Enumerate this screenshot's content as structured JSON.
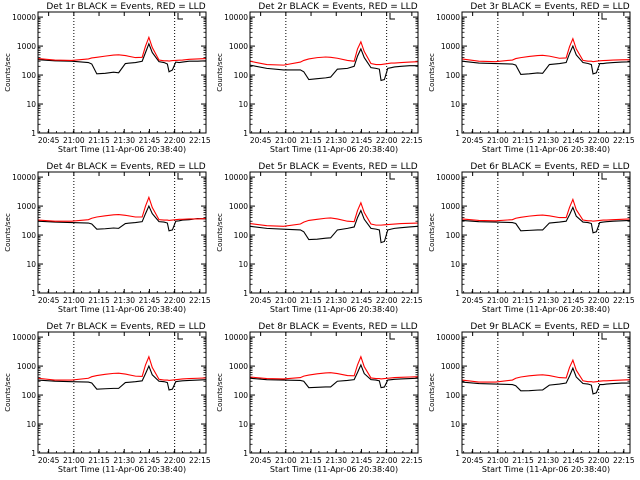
{
  "figure": {
    "xlabel": "Start Time (11-Apr-06 20:38:40)",
    "ylabel": "Counts/sec",
    "x_ticks": [
      "20:45",
      "21:00",
      "21:15",
      "21:30",
      "21:45",
      "22:00",
      "22:15"
    ],
    "y_ticks": [
      "1",
      "10",
      "100",
      "1000",
      "10000"
    ]
  },
  "colors": {
    "events": "#000000",
    "lld": "#ff0000",
    "axes": "#000000",
    "background": "#ffffff"
  },
  "chart_data": [
    {
      "type": "line",
      "title": "Det 1r BLACK = Events, RED = LLD",
      "x_unit": "minutes after 20:38:40",
      "xlim": [
        0,
        100
      ],
      "ylim": [
        1,
        15000
      ],
      "y_scale": "log",
      "dotted_vlines": [
        "21:00",
        "22:00"
      ],
      "x": [
        0,
        10,
        20,
        30,
        32,
        35,
        40,
        45,
        48,
        52,
        58,
        62,
        64,
        66,
        68,
        72,
        75,
        77,
        78,
        80,
        82,
        84,
        86,
        90,
        95,
        100
      ],
      "series": [
        {
          "name": "Events",
          "values": [
            340,
            310,
            300,
            270,
            240,
            110,
            115,
            125,
            120,
            250,
            270,
            300,
            600,
            1200,
            600,
            290,
            270,
            240,
            130,
            150,
            280,
            270,
            280,
            300,
            300,
            310
          ]
        },
        {
          "name": "LLD",
          "values": [
            370,
            330,
            320,
            360,
            390,
            410,
            450,
            490,
            500,
            470,
            400,
            410,
            1000,
            2000,
            900,
            330,
            310,
            310,
            305,
            315,
            320,
            325,
            330,
            350,
            360,
            370
          ]
        }
      ]
    },
    {
      "type": "line",
      "title": "Det 2r BLACK = Events, RED = LLD",
      "x_unit": "minutes after 20:38:40",
      "xlim": [
        0,
        100
      ],
      "ylim": [
        1,
        15000
      ],
      "y_scale": "log",
      "dotted_vlines": [
        "21:00",
        "22:00"
      ],
      "x": [
        0,
        10,
        20,
        30,
        32,
        35,
        40,
        45,
        48,
        52,
        58,
        62,
        64,
        66,
        68,
        72,
        75,
        77,
        78,
        80,
        82,
        84,
        86,
        90,
        95,
        100
      ],
      "series": [
        {
          "name": "Events",
          "values": [
            220,
            170,
            150,
            150,
            130,
            70,
            75,
            80,
            85,
            160,
            170,
            200,
            450,
            800,
            400,
            180,
            170,
            160,
            65,
            70,
            170,
            180,
            190,
            200,
            210,
            210
          ]
        },
        {
          "name": "LLD",
          "values": [
            300,
            230,
            220,
            280,
            320,
            360,
            400,
            420,
            410,
            380,
            320,
            300,
            800,
            1400,
            650,
            250,
            230,
            230,
            230,
            240,
            250,
            260,
            260,
            270,
            280,
            290
          ]
        }
      ]
    },
    {
      "type": "line",
      "title": "Det 3r BLACK = Events, RED = LLD",
      "x_unit": "minutes after 20:38:40",
      "xlim": [
        0,
        100
      ],
      "ylim": [
        1,
        15000
      ],
      "y_scale": "log",
      "dotted_vlines": [
        "21:00",
        "22:00"
      ],
      "x": [
        0,
        10,
        20,
        30,
        32,
        35,
        40,
        45,
        48,
        52,
        58,
        62,
        64,
        66,
        68,
        72,
        75,
        77,
        78,
        80,
        82,
        84,
        86,
        90,
        95,
        100
      ],
      "series": [
        {
          "name": "Events",
          "values": [
            300,
            260,
            250,
            240,
            220,
            105,
            110,
            118,
            115,
            230,
            250,
            270,
            550,
            1000,
            500,
            270,
            250,
            230,
            110,
            120,
            250,
            250,
            260,
            270,
            280,
            285
          ]
        },
        {
          "name": "LLD",
          "values": [
            360,
            300,
            290,
            330,
            370,
            400,
            440,
            470,
            480,
            450,
            380,
            390,
            950,
            1800,
            800,
            320,
            300,
            300,
            290,
            300,
            310,
            315,
            320,
            330,
            335,
            340
          ]
        }
      ]
    },
    {
      "type": "line",
      "title": "Det 4r BLACK = Events, RED = LLD",
      "x_unit": "minutes after 20:38:40",
      "xlim": [
        0,
        100
      ],
      "ylim": [
        1,
        15000
      ],
      "y_scale": "log",
      "dotted_vlines": [
        "21:00",
        "22:00"
      ],
      "x": [
        0,
        10,
        20,
        30,
        32,
        35,
        40,
        45,
        48,
        52,
        58,
        62,
        64,
        66,
        68,
        72,
        75,
        77,
        78,
        80,
        82,
        84,
        86,
        90,
        95,
        100
      ],
      "series": [
        {
          "name": "Events",
          "values": [
            300,
            280,
            270,
            260,
            240,
            160,
            165,
            175,
            170,
            250,
            270,
            290,
            550,
            1000,
            550,
            290,
            280,
            260,
            140,
            150,
            300,
            310,
            330,
            340,
            370,
            360
          ]
        },
        {
          "name": "LLD",
          "values": [
            330,
            300,
            300,
            340,
            380,
            420,
            460,
            500,
            510,
            480,
            420,
            420,
            1000,
            2000,
            900,
            340,
            330,
            330,
            320,
            330,
            340,
            350,
            350,
            360,
            360,
            370
          ]
        }
      ]
    },
    {
      "type": "line",
      "title": "Det 5r BLACK = Events, RED = LLD",
      "x_unit": "minutes after 20:38:40",
      "xlim": [
        0,
        100
      ],
      "ylim": [
        1,
        15000
      ],
      "y_scale": "log",
      "dotted_vlines": [
        "21:00",
        "22:00"
      ],
      "x": [
        0,
        10,
        20,
        30,
        32,
        35,
        40,
        45,
        48,
        52,
        58,
        62,
        64,
        66,
        68,
        72,
        75,
        77,
        78,
        80,
        82,
        84,
        86,
        90,
        95,
        100
      ],
      "series": [
        {
          "name": "Events",
          "values": [
            200,
            170,
            160,
            150,
            130,
            70,
            72,
            78,
            80,
            150,
            170,
            190,
            400,
            700,
            350,
            170,
            160,
            150,
            55,
            60,
            150,
            160,
            170,
            180,
            190,
            200
          ]
        },
        {
          "name": "LLD",
          "values": [
            250,
            210,
            200,
            240,
            280,
            320,
            350,
            380,
            390,
            360,
            300,
            290,
            700,
            1300,
            600,
            240,
            220,
            220,
            220,
            225,
            230,
            235,
            240,
            250,
            255,
            260
          ]
        }
      ]
    },
    {
      "type": "line",
      "title": "Det 6r BLACK = Events, RED = LLD",
      "x_unit": "minutes after 20:38:40",
      "xlim": [
        0,
        100
      ],
      "ylim": [
        1,
        15000
      ],
      "y_scale": "log",
      "dotted_vlines": [
        "21:00",
        "22:00"
      ],
      "x": [
        0,
        10,
        20,
        30,
        32,
        35,
        40,
        45,
        48,
        52,
        58,
        62,
        64,
        66,
        68,
        72,
        75,
        77,
        78,
        80,
        82,
        84,
        86,
        90,
        95,
        100
      ],
      "series": [
        {
          "name": "Events",
          "values": [
            320,
            290,
            280,
            270,
            250,
            140,
            145,
            150,
            150,
            260,
            280,
            300,
            500,
            900,
            450,
            280,
            270,
            250,
            120,
            130,
            270,
            280,
            290,
            300,
            310,
            320
          ]
        },
        {
          "name": "LLD",
          "values": [
            360,
            320,
            310,
            340,
            380,
            410,
            450,
            480,
            490,
            460,
            400,
            400,
            900,
            1700,
            750,
            330,
            310,
            310,
            300,
            310,
            320,
            330,
            330,
            340,
            350,
            360
          ]
        }
      ]
    },
    {
      "type": "line",
      "title": "Det 7r BLACK = Events, RED = LLD",
      "x_unit": "minutes after 20:38:40",
      "xlim": [
        0,
        100
      ],
      "ylim": [
        1,
        15000
      ],
      "y_scale": "log",
      "dotted_vlines": [
        "21:00",
        "22:00"
      ],
      "x": [
        0,
        10,
        20,
        30,
        32,
        35,
        40,
        45,
        48,
        52,
        58,
        62,
        64,
        66,
        68,
        72,
        75,
        77,
        78,
        80,
        82,
        84,
        86,
        90,
        95,
        100
      ],
      "series": [
        {
          "name": "Events",
          "values": [
            330,
            300,
            290,
            280,
            260,
            160,
            165,
            170,
            170,
            270,
            290,
            310,
            550,
            1000,
            500,
            300,
            290,
            270,
            150,
            160,
            290,
            300,
            310,
            320,
            330,
            340
          ]
        },
        {
          "name": "LLD",
          "values": [
            380,
            330,
            330,
            380,
            430,
            470,
            520,
            560,
            570,
            530,
            450,
            440,
            1100,
            2100,
            900,
            350,
            330,
            330,
            320,
            330,
            340,
            350,
            360,
            370,
            380,
            390
          ]
        }
      ]
    },
    {
      "type": "line",
      "title": "Det 8r BLACK = Events, RED = LLD",
      "x_unit": "minutes after 20:38:40",
      "xlim": [
        0,
        100
      ],
      "ylim": [
        1,
        15000
      ],
      "y_scale": "log",
      "dotted_vlines": [
        "21:00",
        "22:00"
      ],
      "x": [
        0,
        10,
        20,
        30,
        32,
        35,
        40,
        45,
        48,
        52,
        58,
        62,
        64,
        66,
        68,
        72,
        75,
        77,
        78,
        80,
        82,
        84,
        86,
        90,
        95,
        100
      ],
      "series": [
        {
          "name": "Events",
          "values": [
            380,
            340,
            330,
            320,
            300,
            180,
            185,
            190,
            190,
            300,
            320,
            340,
            600,
            1100,
            550,
            340,
            330,
            310,
            180,
            190,
            330,
            340,
            350,
            360,
            370,
            380
          ]
        },
        {
          "name": "LLD",
          "values": [
            420,
            370,
            360,
            400,
            450,
            490,
            540,
            580,
            590,
            550,
            470,
            460,
            1100,
            2100,
            950,
            390,
            370,
            370,
            360,
            370,
            380,
            390,
            400,
            410,
            420,
            430
          ]
        }
      ]
    },
    {
      "type": "line",
      "title": "Det 9r BLACK = Events, RED = LLD",
      "x_unit": "minutes after 20:38:40",
      "xlim": [
        0,
        100
      ],
      "ylim": [
        1,
        15000
      ],
      "y_scale": "log",
      "dotted_vlines": [
        "21:00",
        "22:00"
      ],
      "x": [
        0,
        10,
        20,
        30,
        32,
        35,
        40,
        45,
        48,
        52,
        58,
        62,
        64,
        66,
        68,
        72,
        75,
        77,
        78,
        80,
        82,
        84,
        86,
        90,
        95,
        100
      ],
      "series": [
        {
          "name": "Events",
          "values": [
            280,
            250,
            240,
            230,
            210,
            140,
            142,
            148,
            150,
            220,
            240,
            260,
            450,
            850,
            420,
            250,
            240,
            220,
            110,
            120,
            230,
            230,
            240,
            250,
            260,
            260
          ]
        },
        {
          "name": "LLD",
          "values": [
            330,
            280,
            280,
            330,
            380,
            420,
            460,
            490,
            500,
            470,
            400,
            390,
            900,
            1600,
            720,
            310,
            290,
            290,
            280,
            290,
            300,
            310,
            310,
            320,
            330,
            340
          ]
        }
      ]
    }
  ]
}
